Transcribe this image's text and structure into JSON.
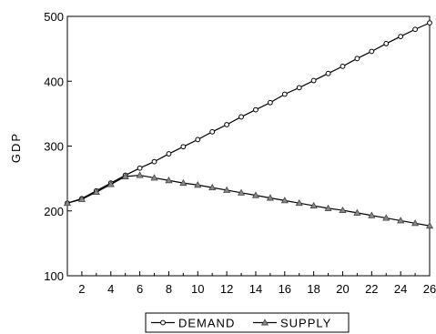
{
  "chart_data": {
    "type": "line",
    "title": "",
    "xlabel": "",
    "ylabel": "GDP",
    "x": [
      1,
      2,
      3,
      4,
      5,
      6,
      7,
      8,
      9,
      10,
      11,
      12,
      13,
      14,
      15,
      16,
      17,
      18,
      19,
      20,
      21,
      22,
      23,
      24,
      25,
      26
    ],
    "xlim": [
      1,
      26
    ],
    "ylim": [
      100,
      500
    ],
    "xticks": [
      2,
      4,
      6,
      8,
      10,
      12,
      14,
      16,
      18,
      20,
      22,
      24,
      26
    ],
    "yticks": [
      100,
      200,
      300,
      400,
      500
    ],
    "grid": false,
    "legend_position": "bottom-center",
    "series": [
      {
        "name": "DEMAND",
        "marker": "circle",
        "color": "#000000",
        "values": [
          212,
          219,
          231,
          243,
          255,
          266,
          276,
          288,
          299,
          310,
          322,
          333,
          345,
          356,
          367,
          380,
          390,
          401,
          412,
          423,
          435,
          446,
          458,
          469,
          480,
          490
        ]
      },
      {
        "name": "SUPPLY",
        "marker": "triangle",
        "color": "#000000",
        "values": [
          212,
          218,
          229,
          241,
          253,
          255,
          251,
          247,
          243,
          240,
          236,
          232,
          228,
          224,
          220,
          216,
          212,
          208,
          204,
          201,
          197,
          193,
          189,
          185,
          181,
          177
        ]
      }
    ]
  }
}
